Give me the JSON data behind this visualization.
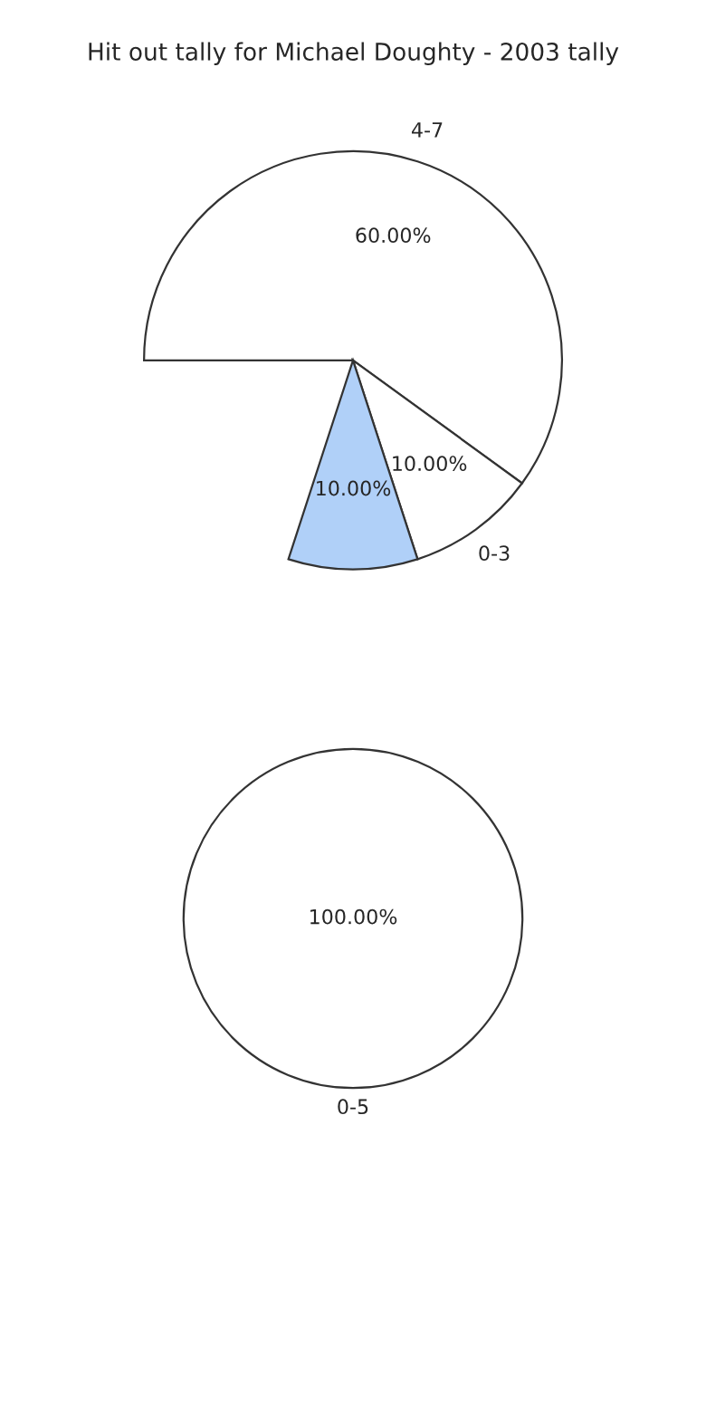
{
  "chart_data": [
    {
      "type": "pie",
      "title": "Hit out tally for Michael Doughty - 2003 tally",
      "categories": [
        "4-7",
        "0-3",
        null
      ],
      "values": [
        60,
        10,
        10
      ],
      "colors": [
        "#ffffff",
        "#ffffff",
        "#b0d0f8"
      ],
      "value_labels": [
        "60.00%",
        "10.00%",
        "10.00%"
      ]
    },
    {
      "type": "pie",
      "categories": [
        "0-5"
      ],
      "values": [
        100
      ],
      "colors": [
        "#ffffff"
      ],
      "value_labels": [
        "100.00%"
      ]
    }
  ]
}
